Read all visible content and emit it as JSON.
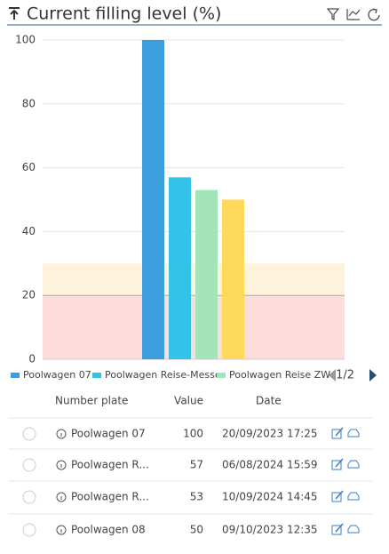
{
  "header": {
    "title": "Current filling level (%)"
  },
  "chart_data": {
    "type": "bar",
    "values": [
      100,
      57,
      53,
      50
    ],
    "colors": [
      "#3a9fdc",
      "#34c3e8",
      "#a3e4b8",
      "#ffd95a"
    ],
    "ylim": [
      0,
      100
    ],
    "yticks": [
      0,
      20,
      40,
      60,
      80,
      100
    ],
    "grid": true,
    "bands": [
      {
        "from": 0,
        "to": 20,
        "color": "#fddcdc"
      },
      {
        "from": 20,
        "to": 30,
        "color": "#fdf3dc"
      }
    ],
    "legend": {
      "names": [
        "Poolwagen 07",
        "Poolwagen Reise-Messe",
        "Poolwagen Reise ZW"
      ],
      "page": "1/2"
    }
  },
  "table": {
    "columns": [
      "Number plate",
      "Value",
      "Date"
    ],
    "rows": [
      [
        "Poolwagen 07",
        "100",
        "20/09/2023 17:25"
      ],
      [
        "Poolwagen R...",
        "57",
        "06/08/2024 15:59"
      ],
      [
        "Poolwagen R...",
        "53",
        "10/09/2024 14:45"
      ],
      [
        "Poolwagen 08",
        "50",
        "09/10/2023 12:35"
      ]
    ]
  }
}
